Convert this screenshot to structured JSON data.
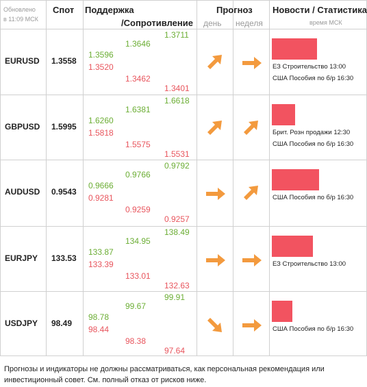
{
  "header": {
    "updated_line1": "Обновлено",
    "updated_line2": "в 11:09 МСК",
    "spot": "Спот",
    "support": "Поддержка",
    "resistance": "/Сопротивление",
    "forecast": "Прогноз",
    "day": "день",
    "week": "неделя",
    "news": "Новости / Статистика",
    "news_time": "время МСК"
  },
  "rows": [
    {
      "pair": "EURUSD",
      "spot": "1.3558",
      "s1_g": "1.3596",
      "s1_r": "1.3520",
      "s2_g": "1.3646",
      "s2_r": "1.3462",
      "s3_g": "1.3711",
      "s3_r": "1.3401",
      "day_icon": "arrow-up-right-icon",
      "week_icon": "arrow-right-icon",
      "bar_level": 0.51,
      "news": [
        "ЕЗ Строительство 13:00",
        "США Пособия по б/р 16:30"
      ]
    },
    {
      "pair": "GBPUSD",
      "spot": "1.5995",
      "s1_g": "1.6260",
      "s1_r": "1.5818",
      "s2_g": "1.6381",
      "s2_r": "1.5575",
      "s3_g": "1.6618",
      "s3_r": "1.5531",
      "day_icon": "arrow-up-right-icon",
      "week_icon": "arrow-up-right-icon",
      "bar_level": 0.26,
      "news": [
        "Брит. Розн продажи 12:30",
        "США Пособия по б/р 16:30"
      ]
    },
    {
      "pair": "AUDUSD",
      "spot": "0.9543",
      "s1_g": "0.9666",
      "s1_r": "0.9281",
      "s2_g": "0.9766",
      "s2_r": "0.9259",
      "s3_g": "0.9792",
      "s3_r": "0.9257",
      "day_icon": "arrow-right-icon",
      "week_icon": "arrow-up-right-icon",
      "bar_level": 0.53,
      "news": [
        "США Пособия по б/р 16:30"
      ]
    },
    {
      "pair": "EURJPY",
      "spot": "133.53",
      "s1_g": "133.87",
      "s1_r": "133.39",
      "s2_g": "134.95",
      "s2_r": "133.01",
      "s3_g": "138.49",
      "s3_r": "132.63",
      "day_icon": "arrow-right-icon",
      "week_icon": "arrow-right-icon",
      "bar_level": 0.46,
      "news": [
        "ЕЗ Строительство 13:00"
      ]
    },
    {
      "pair": "USDJPY",
      "spot": "98.49",
      "s1_g": "98.78",
      "s1_r": "98.44",
      "s2_g": "99.67",
      "s2_r": "98.38",
      "s3_g": "99.91",
      "s3_r": "97.64",
      "day_icon": "arrow-down-right-icon",
      "week_icon": "arrow-right-icon",
      "bar_level": 0.23,
      "news": [
        "США Пособия по б/р 16:30"
      ]
    }
  ],
  "footer": "Прогнозы и индикаторы не должны рассматриваться, как персональная рекомендация или инвестиционный совет. См. полный отказ от рисков ниже.",
  "colors": {
    "green": "#6cae35",
    "red": "#e8555d",
    "bar": "#f25360",
    "arrow": "#f39a3e"
  }
}
